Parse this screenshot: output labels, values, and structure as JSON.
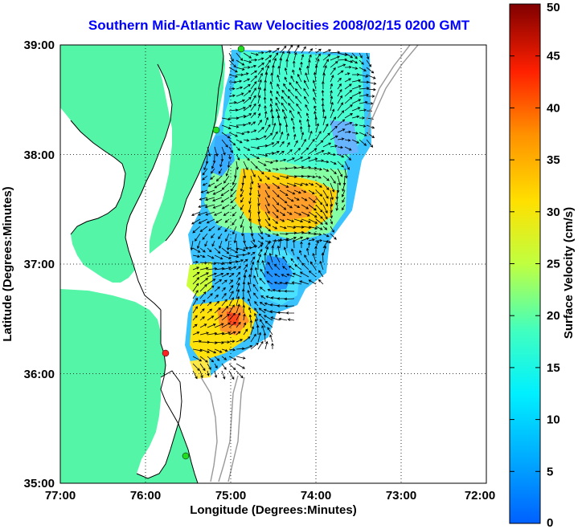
{
  "title": "Southern Mid-Atlantic Raw Velocities 2008/02/15 0200 GMT",
  "map": {
    "xlabel": "Longitude (Degrees:Minutes)",
    "ylabel": "Latitude (Degrees:Minutes)",
    "lon_ticks": [
      "77:00",
      "76:00",
      "75:00",
      "74:00",
      "73:00",
      "72:00"
    ],
    "lat_ticks": [
      "35:00",
      "36:00",
      "37:00",
      "38:00",
      "39:00"
    ],
    "lon_range": [
      -77,
      -72
    ],
    "lat_range": [
      35,
      39
    ]
  },
  "colorbar": {
    "label": "Surface Velocity (cm/s)",
    "ticks": [
      "0",
      "5",
      "10",
      "15",
      "20",
      "25",
      "30",
      "35",
      "40",
      "45",
      "50"
    ],
    "range": [
      0,
      50
    ]
  },
  "colors": {
    "land": "#55f5a8",
    "water": "#ffffff",
    "title": "#0000ff",
    "station_green": "#22dd22",
    "station_red": "#ff2222"
  }
}
